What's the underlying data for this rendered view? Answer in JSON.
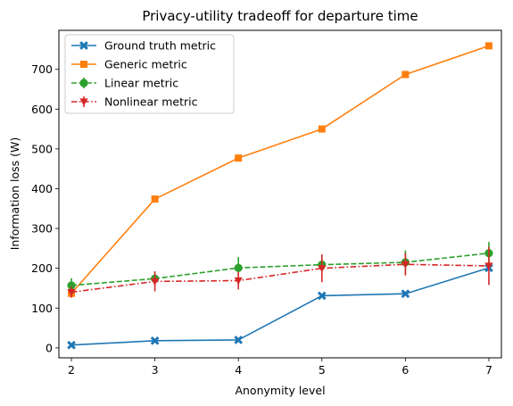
{
  "chart_data": {
    "type": "line",
    "title": "Privacy-utility tradeoff for departure time",
    "xlabel": "Anonymity level",
    "ylabel": "Information loss (W)",
    "x": [
      2,
      3,
      4,
      5,
      6,
      7
    ],
    "xticks": [
      "2",
      "3",
      "4",
      "5",
      "6",
      "7"
    ],
    "yticks": [
      "0",
      "100",
      "200",
      "300",
      "400",
      "500",
      "600",
      "700"
    ],
    "xlim": [
      1.85,
      7.15
    ],
    "ylim": [
      -25,
      798
    ],
    "grid": false,
    "legend_position": "top-left",
    "series": [
      {
        "name": "Ground truth metric",
        "color": "#1f77b4",
        "marker": "x-filled",
        "linestyle": "solid",
        "values": [
          7,
          18,
          20,
          131,
          136,
          201
        ],
        "errors": null
      },
      {
        "name": "Generic metric",
        "color": "#ff7f0e",
        "marker": "square",
        "linestyle": "solid",
        "values": [
          137,
          374,
          477,
          550,
          687,
          759
        ],
        "errors": null
      },
      {
        "name": "Linear metric",
        "color": "#2ca02c",
        "marker": "circle",
        "linestyle": "dashed",
        "values": [
          157,
          174,
          201,
          209,
          215,
          238
        ],
        "errors": [
          18,
          18,
          27,
          18,
          30,
          28
        ]
      },
      {
        "name": "Nonlinear metric",
        "color": "#d62728",
        "marker": "triangle-down",
        "linestyle": "dashdot",
        "values": [
          140,
          167,
          169,
          200,
          210,
          206
        ],
        "errors": [
          14,
          25,
          22,
          35,
          28,
          48
        ]
      }
    ]
  }
}
